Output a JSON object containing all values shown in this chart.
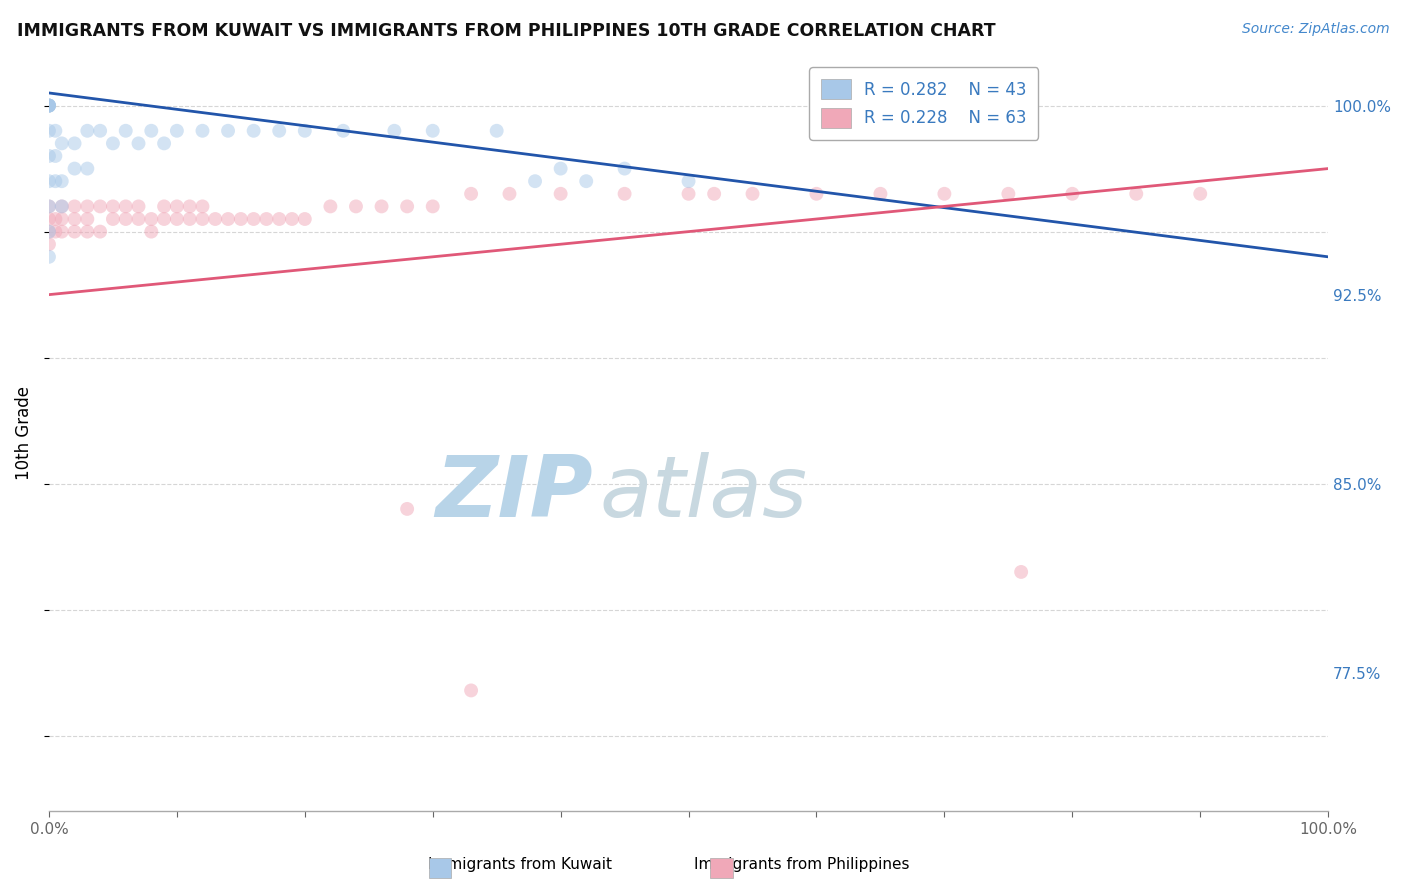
{
  "title": "IMMIGRANTS FROM KUWAIT VS IMMIGRANTS FROM PHILIPPINES 10TH GRADE CORRELATION CHART",
  "source_text": "Source: ZipAtlas.com",
  "ylabel": "10th Grade",
  "xlim": [
    0.0,
    1.0
  ],
  "ylim": [
    0.72,
    1.02
  ],
  "yticks": [
    0.775,
    0.85,
    0.925,
    1.0
  ],
  "ytick_labels": [
    "77.5%",
    "85.0%",
    "92.5%",
    "100.0%"
  ],
  "xtick_labels": [
    "0.0%",
    "100.0%"
  ],
  "legend_r1": "R = 0.282",
  "legend_n1": "N = 43",
  "legend_r2": "R = 0.228",
  "legend_n2": "N = 63",
  "color_kuwait": "#a8c8e8",
  "color_philippines": "#f0a8b8",
  "line_color_kuwait": "#2255aa",
  "line_color_philippines": "#e05878",
  "watermark_zip": "ZIP",
  "watermark_atlas": "atlas",
  "watermark_color_zip": "#b8d4e8",
  "watermark_color_atlas": "#c8d8e0",
  "background_color": "#ffffff",
  "grid_color": "#cccccc",
  "kuwait_x": [
    0.0,
    0.0,
    0.0,
    0.0,
    0.0,
    0.0,
    0.0,
    0.0,
    0.0,
    0.0,
    0.0,
    0.0,
    0.005,
    0.005,
    0.005,
    0.01,
    0.01,
    0.01,
    0.02,
    0.02,
    0.03,
    0.03,
    0.04,
    0.05,
    0.06,
    0.07,
    0.08,
    0.09,
    0.1,
    0.12,
    0.14,
    0.16,
    0.18,
    0.2,
    0.23,
    0.27,
    0.3,
    0.35,
    0.38,
    0.4,
    0.42,
    0.45,
    0.5
  ],
  "kuwait_y": [
    1.0,
    1.0,
    1.0,
    1.0,
    1.0,
    1.0,
    0.99,
    0.98,
    0.97,
    0.96,
    0.95,
    0.94,
    0.99,
    0.98,
    0.97,
    0.985,
    0.97,
    0.96,
    0.985,
    0.975,
    0.99,
    0.975,
    0.99,
    0.985,
    0.99,
    0.985,
    0.99,
    0.985,
    0.99,
    0.99,
    0.99,
    0.99,
    0.99,
    0.99,
    0.99,
    0.99,
    0.99,
    0.99,
    0.97,
    0.975,
    0.97,
    0.975,
    0.97
  ],
  "kuwait_line_x": [
    0.0,
    1.0
  ],
  "kuwait_line_y": [
    1.005,
    0.94
  ],
  "philippines_x": [
    0.0,
    0.0,
    0.0,
    0.0,
    0.005,
    0.005,
    0.01,
    0.01,
    0.01,
    0.02,
    0.02,
    0.02,
    0.03,
    0.03,
    0.03,
    0.04,
    0.04,
    0.05,
    0.05,
    0.06,
    0.06,
    0.07,
    0.07,
    0.08,
    0.08,
    0.09,
    0.09,
    0.1,
    0.1,
    0.11,
    0.11,
    0.12,
    0.12,
    0.13,
    0.14,
    0.15,
    0.16,
    0.17,
    0.18,
    0.19,
    0.2,
    0.22,
    0.24,
    0.26,
    0.28,
    0.3,
    0.33,
    0.36,
    0.4,
    0.45,
    0.5,
    0.52,
    0.55,
    0.6,
    0.65,
    0.7,
    0.75,
    0.8,
    0.85,
    0.9,
    0.28,
    0.33,
    0.76
  ],
  "philippines_y": [
    0.96,
    0.955,
    0.95,
    0.945,
    0.955,
    0.95,
    0.96,
    0.955,
    0.95,
    0.96,
    0.955,
    0.95,
    0.96,
    0.955,
    0.95,
    0.96,
    0.95,
    0.96,
    0.955,
    0.96,
    0.955,
    0.96,
    0.955,
    0.955,
    0.95,
    0.96,
    0.955,
    0.96,
    0.955,
    0.96,
    0.955,
    0.96,
    0.955,
    0.955,
    0.955,
    0.955,
    0.955,
    0.955,
    0.955,
    0.955,
    0.955,
    0.96,
    0.96,
    0.96,
    0.96,
    0.96,
    0.965,
    0.965,
    0.965,
    0.965,
    0.965,
    0.965,
    0.965,
    0.965,
    0.965,
    0.965,
    0.965,
    0.965,
    0.965,
    0.965,
    0.84,
    0.768,
    0.815
  ],
  "philippines_line_x": [
    0.0,
    1.0
  ],
  "philippines_line_y": [
    0.925,
    0.975
  ],
  "marker_size": 100,
  "marker_alpha": 0.5
}
